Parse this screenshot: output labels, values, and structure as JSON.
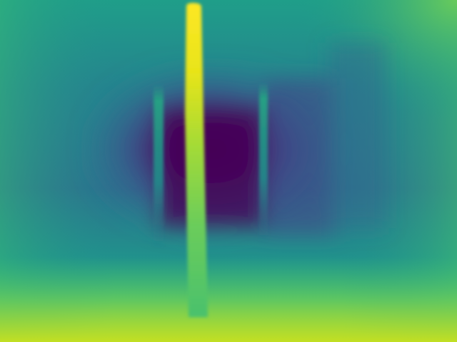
{
  "image": {
    "kind": "depth-map",
    "colormap": "viridis",
    "colors": {
      "far_purple": "#440154",
      "mid_blue": "#3b528b",
      "teal": "#21918c",
      "green": "#5ec962",
      "near_yellow": "#fde725"
    }
  }
}
